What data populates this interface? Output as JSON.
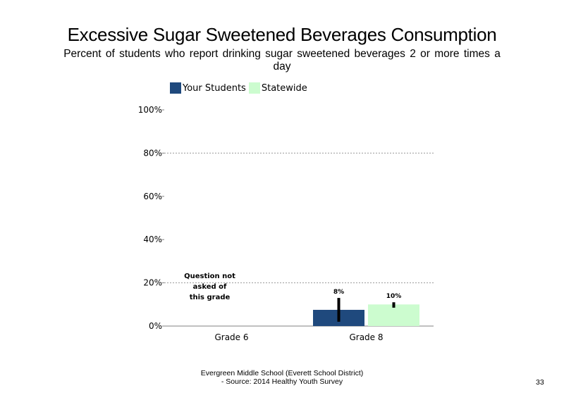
{
  "title": "Excessive Sugar Sweetened Beverages Consumption",
  "subtitle": "Percent of students who report drinking sugar sweetened beverages 2 or more times a day",
  "legend": [
    {
      "label": "Your Students",
      "color": "#1f497d"
    },
    {
      "label": "Statewide",
      "color": "#ccfccf"
    }
  ],
  "footer": {
    "line1": "Evergreen Middle School (Everett School District)",
    "line2": "- Source: 2014 Healthy Youth Survey"
  },
  "page_number": "33",
  "chart_data": {
    "type": "bar",
    "categories": [
      "Grade 6",
      "Grade 8"
    ],
    "series": [
      {
        "name": "Your Students",
        "color": "#1f497d",
        "values": [
          null,
          7.5
        ],
        "error": [
          null,
          [
            2,
            13
          ]
        ],
        "labels": [
          null,
          "8%"
        ]
      },
      {
        "name": "Statewide",
        "color": "#ccfccf",
        "values": [
          null,
          10
        ],
        "error": [
          null,
          [
            8.5,
            11
          ]
        ],
        "labels": [
          null,
          "10%"
        ]
      }
    ],
    "ylim": [
      0,
      100
    ],
    "yticks": [
      "0%",
      "20%",
      "40%",
      "60%",
      "80%",
      "100%"
    ],
    "ytick_values": [
      0,
      20,
      40,
      60,
      80,
      100
    ],
    "grid": true,
    "legend_position": "top-left",
    "annotations": [
      {
        "category": "Grade 6",
        "lines": [
          "Question not",
          "asked of",
          "this grade"
        ]
      }
    ]
  }
}
